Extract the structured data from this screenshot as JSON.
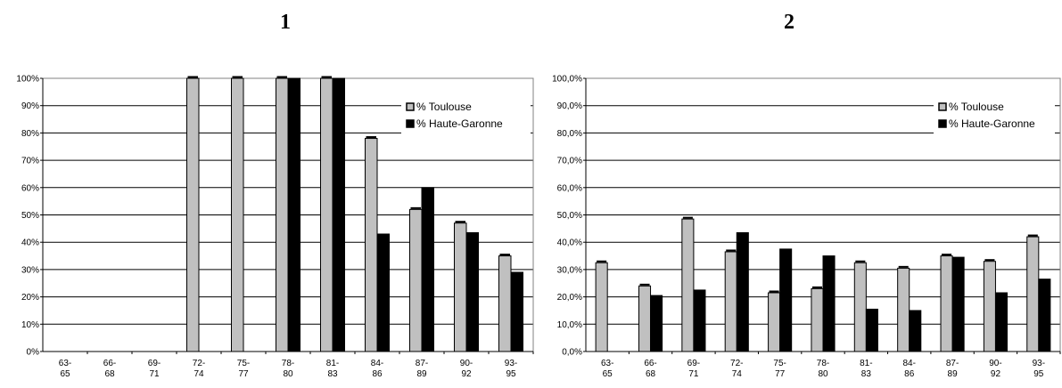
{
  "chart_data": [
    {
      "type": "bar",
      "title": "1",
      "categories": [
        [
          "63-",
          "65"
        ],
        [
          "66-",
          "68"
        ],
        [
          "69-",
          "71"
        ],
        [
          "72-",
          "74"
        ],
        [
          "75-",
          "77"
        ],
        [
          "78-",
          "80"
        ],
        [
          "81-",
          "83"
        ],
        [
          "84-",
          "86"
        ],
        [
          "87-",
          "89"
        ],
        [
          "90-",
          "92"
        ],
        [
          "93-",
          "95"
        ]
      ],
      "series": [
        {
          "name": "% Toulouse",
          "color": "#c0c0c0",
          "values": [
            0,
            0,
            0,
            100,
            100,
            100,
            100,
            78,
            52,
            47,
            35
          ]
        },
        {
          "name": "% Haute-Garonne",
          "color": "#000000",
          "values": [
            0,
            0,
            0,
            0,
            0,
            100,
            100,
            43,
            60,
            43.5,
            29
          ]
        }
      ],
      "ylim": [
        0,
        100
      ],
      "yticks": [
        "0%",
        "10%",
        "20%",
        "30%",
        "40%",
        "50%",
        "60%",
        "70%",
        "80%",
        "90%",
        "100%"
      ],
      "grid": true,
      "legend": "right"
    },
    {
      "type": "bar",
      "title": "2",
      "categories": [
        [
          "63-",
          "65"
        ],
        [
          "66-",
          "68"
        ],
        [
          "69-",
          "71"
        ],
        [
          "72-",
          "74"
        ],
        [
          "75-",
          "77"
        ],
        [
          "78-",
          "80"
        ],
        [
          "81-",
          "83"
        ],
        [
          "84-",
          "86"
        ],
        [
          "87-",
          "89"
        ],
        [
          "90-",
          "92"
        ],
        [
          "93-",
          "95"
        ]
      ],
      "series": [
        {
          "name": "% Toulouse",
          "color": "#c0c0c0",
          "values": [
            32.5,
            24,
            48.5,
            36.5,
            21.5,
            23,
            32.5,
            30.5,
            35,
            33,
            42
          ]
        },
        {
          "name": "% Haute-Garonne",
          "color": "#000000",
          "values": [
            0,
            20.5,
            22.5,
            43.5,
            37.5,
            35,
            15.5,
            15,
            34.5,
            21.5,
            26.5
          ]
        }
      ],
      "ylim": [
        0,
        100
      ],
      "yticks": [
        "0,0%",
        "10,0%",
        "20,0%",
        "30,0%",
        "40,0%",
        "50,0%",
        "60,0%",
        "70,0%",
        "80,0%",
        "90,0%",
        "100,0%"
      ],
      "grid": true,
      "legend": "right"
    }
  ]
}
